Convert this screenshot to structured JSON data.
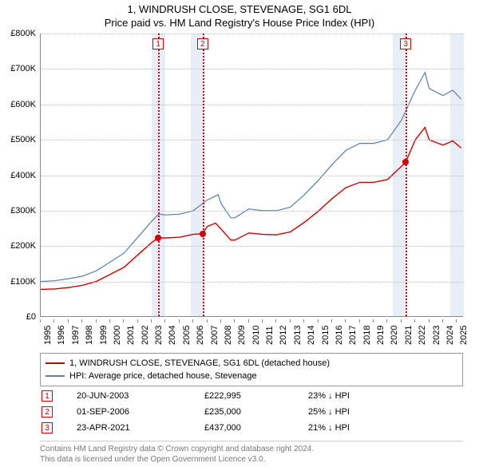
{
  "title_line1": "1, WINDRUSH CLOSE, STEVENAGE, SG1 6DL",
  "title_line2": "Price paid vs. HM Land Registry's House Price Index (HPI)",
  "chart": {
    "type": "line",
    "x_min": 1995,
    "x_max": 2025.5,
    "y_min": 0,
    "y_max": 800000,
    "y_ticks": [
      0,
      100000,
      200000,
      300000,
      400000,
      500000,
      600000,
      700000,
      800000
    ],
    "y_tick_labels": [
      "£0",
      "£100K",
      "£200K",
      "£300K",
      "£400K",
      "£500K",
      "£600K",
      "£700K",
      "£800K"
    ],
    "x_ticks": [
      1995,
      1996,
      1997,
      1998,
      1999,
      2000,
      2001,
      2002,
      2003,
      2004,
      2005,
      2006,
      2007,
      2008,
      2009,
      2010,
      2011,
      2012,
      2013,
      2014,
      2015,
      2016,
      2017,
      2018,
      2019,
      2020,
      2021,
      2022,
      2023,
      2024,
      2025
    ],
    "grid_color": "#bbbbbb",
    "background_color": "#ffffff",
    "shaded_bands": [
      {
        "from": 2003.0,
        "to": 2004.0,
        "color": "#dce5f2"
      },
      {
        "from": 2005.8,
        "to": 2006.8,
        "color": "#dce5f2"
      },
      {
        "from": 2020.4,
        "to": 2021.4,
        "color": "#dce5f2"
      },
      {
        "from": 2024.5,
        "to": 2025.5,
        "color": "#dce5f2"
      }
    ],
    "markers": [
      {
        "n": "1",
        "x": 2003.47,
        "color": "#cc0000",
        "label_y": 770000
      },
      {
        "n": "2",
        "x": 2006.67,
        "color": "#cc0000",
        "label_y": 770000
      },
      {
        "n": "3",
        "x": 2021.31,
        "color": "#cc0000",
        "label_y": 770000
      }
    ],
    "series_hpi": {
      "color": "#5b7fa6",
      "width": 1.2,
      "points": [
        [
          1995,
          100000
        ],
        [
          1996,
          102000
        ],
        [
          1997,
          108000
        ],
        [
          1998,
          115000
        ],
        [
          1999,
          130000
        ],
        [
          2000,
          155000
        ],
        [
          2001,
          180000
        ],
        [
          2002,
          225000
        ],
        [
          2003,
          270000
        ],
        [
          2003.5,
          290000
        ],
        [
          2004,
          288000
        ],
        [
          2005,
          290000
        ],
        [
          2006,
          300000
        ],
        [
          2007,
          330000
        ],
        [
          2007.8,
          345000
        ],
        [
          2008,
          320000
        ],
        [
          2008.7,
          280000
        ],
        [
          2009,
          280000
        ],
        [
          2010,
          305000
        ],
        [
          2011,
          300000
        ],
        [
          2012,
          300000
        ],
        [
          2013,
          310000
        ],
        [
          2014,
          345000
        ],
        [
          2015,
          385000
        ],
        [
          2016,
          430000
        ],
        [
          2017,
          470000
        ],
        [
          2018,
          490000
        ],
        [
          2019,
          490000
        ],
        [
          2020,
          500000
        ],
        [
          2021,
          555000
        ],
        [
          2022,
          640000
        ],
        [
          2022.7,
          690000
        ],
        [
          2023,
          645000
        ],
        [
          2024,
          625000
        ],
        [
          2024.7,
          640000
        ],
        [
          2025.3,
          615000
        ]
      ]
    },
    "series_property": {
      "color": "#cc0000",
      "width": 1.4,
      "points": [
        [
          1995,
          78000
        ],
        [
          1996,
          79000
        ],
        [
          1997,
          83000
        ],
        [
          1998,
          89000
        ],
        [
          1999,
          100000
        ],
        [
          2000,
          120000
        ],
        [
          2001,
          140000
        ],
        [
          2002,
          175000
        ],
        [
          2003,
          210000
        ],
        [
          2003.47,
          222995
        ],
        [
          2004,
          223000
        ],
        [
          2005,
          225000
        ],
        [
          2006,
          233000
        ],
        [
          2006.67,
          235000
        ],
        [
          2007,
          255000
        ],
        [
          2007.6,
          265000
        ],
        [
          2008,
          248000
        ],
        [
          2008.7,
          217000
        ],
        [
          2009,
          217000
        ],
        [
          2010,
          237000
        ],
        [
          2011,
          233000
        ],
        [
          2012,
          232000
        ],
        [
          2013,
          240000
        ],
        [
          2014,
          267000
        ],
        [
          2015,
          298000
        ],
        [
          2016,
          334000
        ],
        [
          2017,
          365000
        ],
        [
          2018,
          380000
        ],
        [
          2019,
          380000
        ],
        [
          2020,
          388000
        ],
        [
          2021,
          425000
        ],
        [
          2021.31,
          437000
        ],
        [
          2022,
          500000
        ],
        [
          2022.7,
          535000
        ],
        [
          2023,
          500000
        ],
        [
          2024,
          485000
        ],
        [
          2024.7,
          497000
        ],
        [
          2025.3,
          477000
        ]
      ]
    },
    "sale_points": [
      {
        "x": 2003.47,
        "y": 222995,
        "color": "#cc0000"
      },
      {
        "x": 2006.67,
        "y": 235000,
        "color": "#cc0000"
      },
      {
        "x": 2021.31,
        "y": 437000,
        "color": "#cc0000"
      }
    ]
  },
  "legend": {
    "items": [
      {
        "color": "#cc0000",
        "label": "1, WINDRUSH CLOSE, STEVENAGE, SG1 6DL (detached house)"
      },
      {
        "color": "#5b7fa6",
        "label": "HPI: Average price, detached house, Stevenage"
      }
    ]
  },
  "transactions": [
    {
      "n": "1",
      "date": "20-JUN-2003",
      "price": "£222,995",
      "pct": "23% ↓ HPI",
      "color": "#cc0000"
    },
    {
      "n": "2",
      "date": "01-SEP-2006",
      "price": "£235,000",
      "pct": "25% ↓ HPI",
      "color": "#cc0000"
    },
    {
      "n": "3",
      "date": "23-APR-2021",
      "price": "£437,000",
      "pct": "21% ↓ HPI",
      "color": "#cc0000"
    }
  ],
  "footer": {
    "line1": "Contains HM Land Registry data © Crown copyright and database right 2024.",
    "line2": "This data is licensed under the Open Government Licence v3.0."
  }
}
